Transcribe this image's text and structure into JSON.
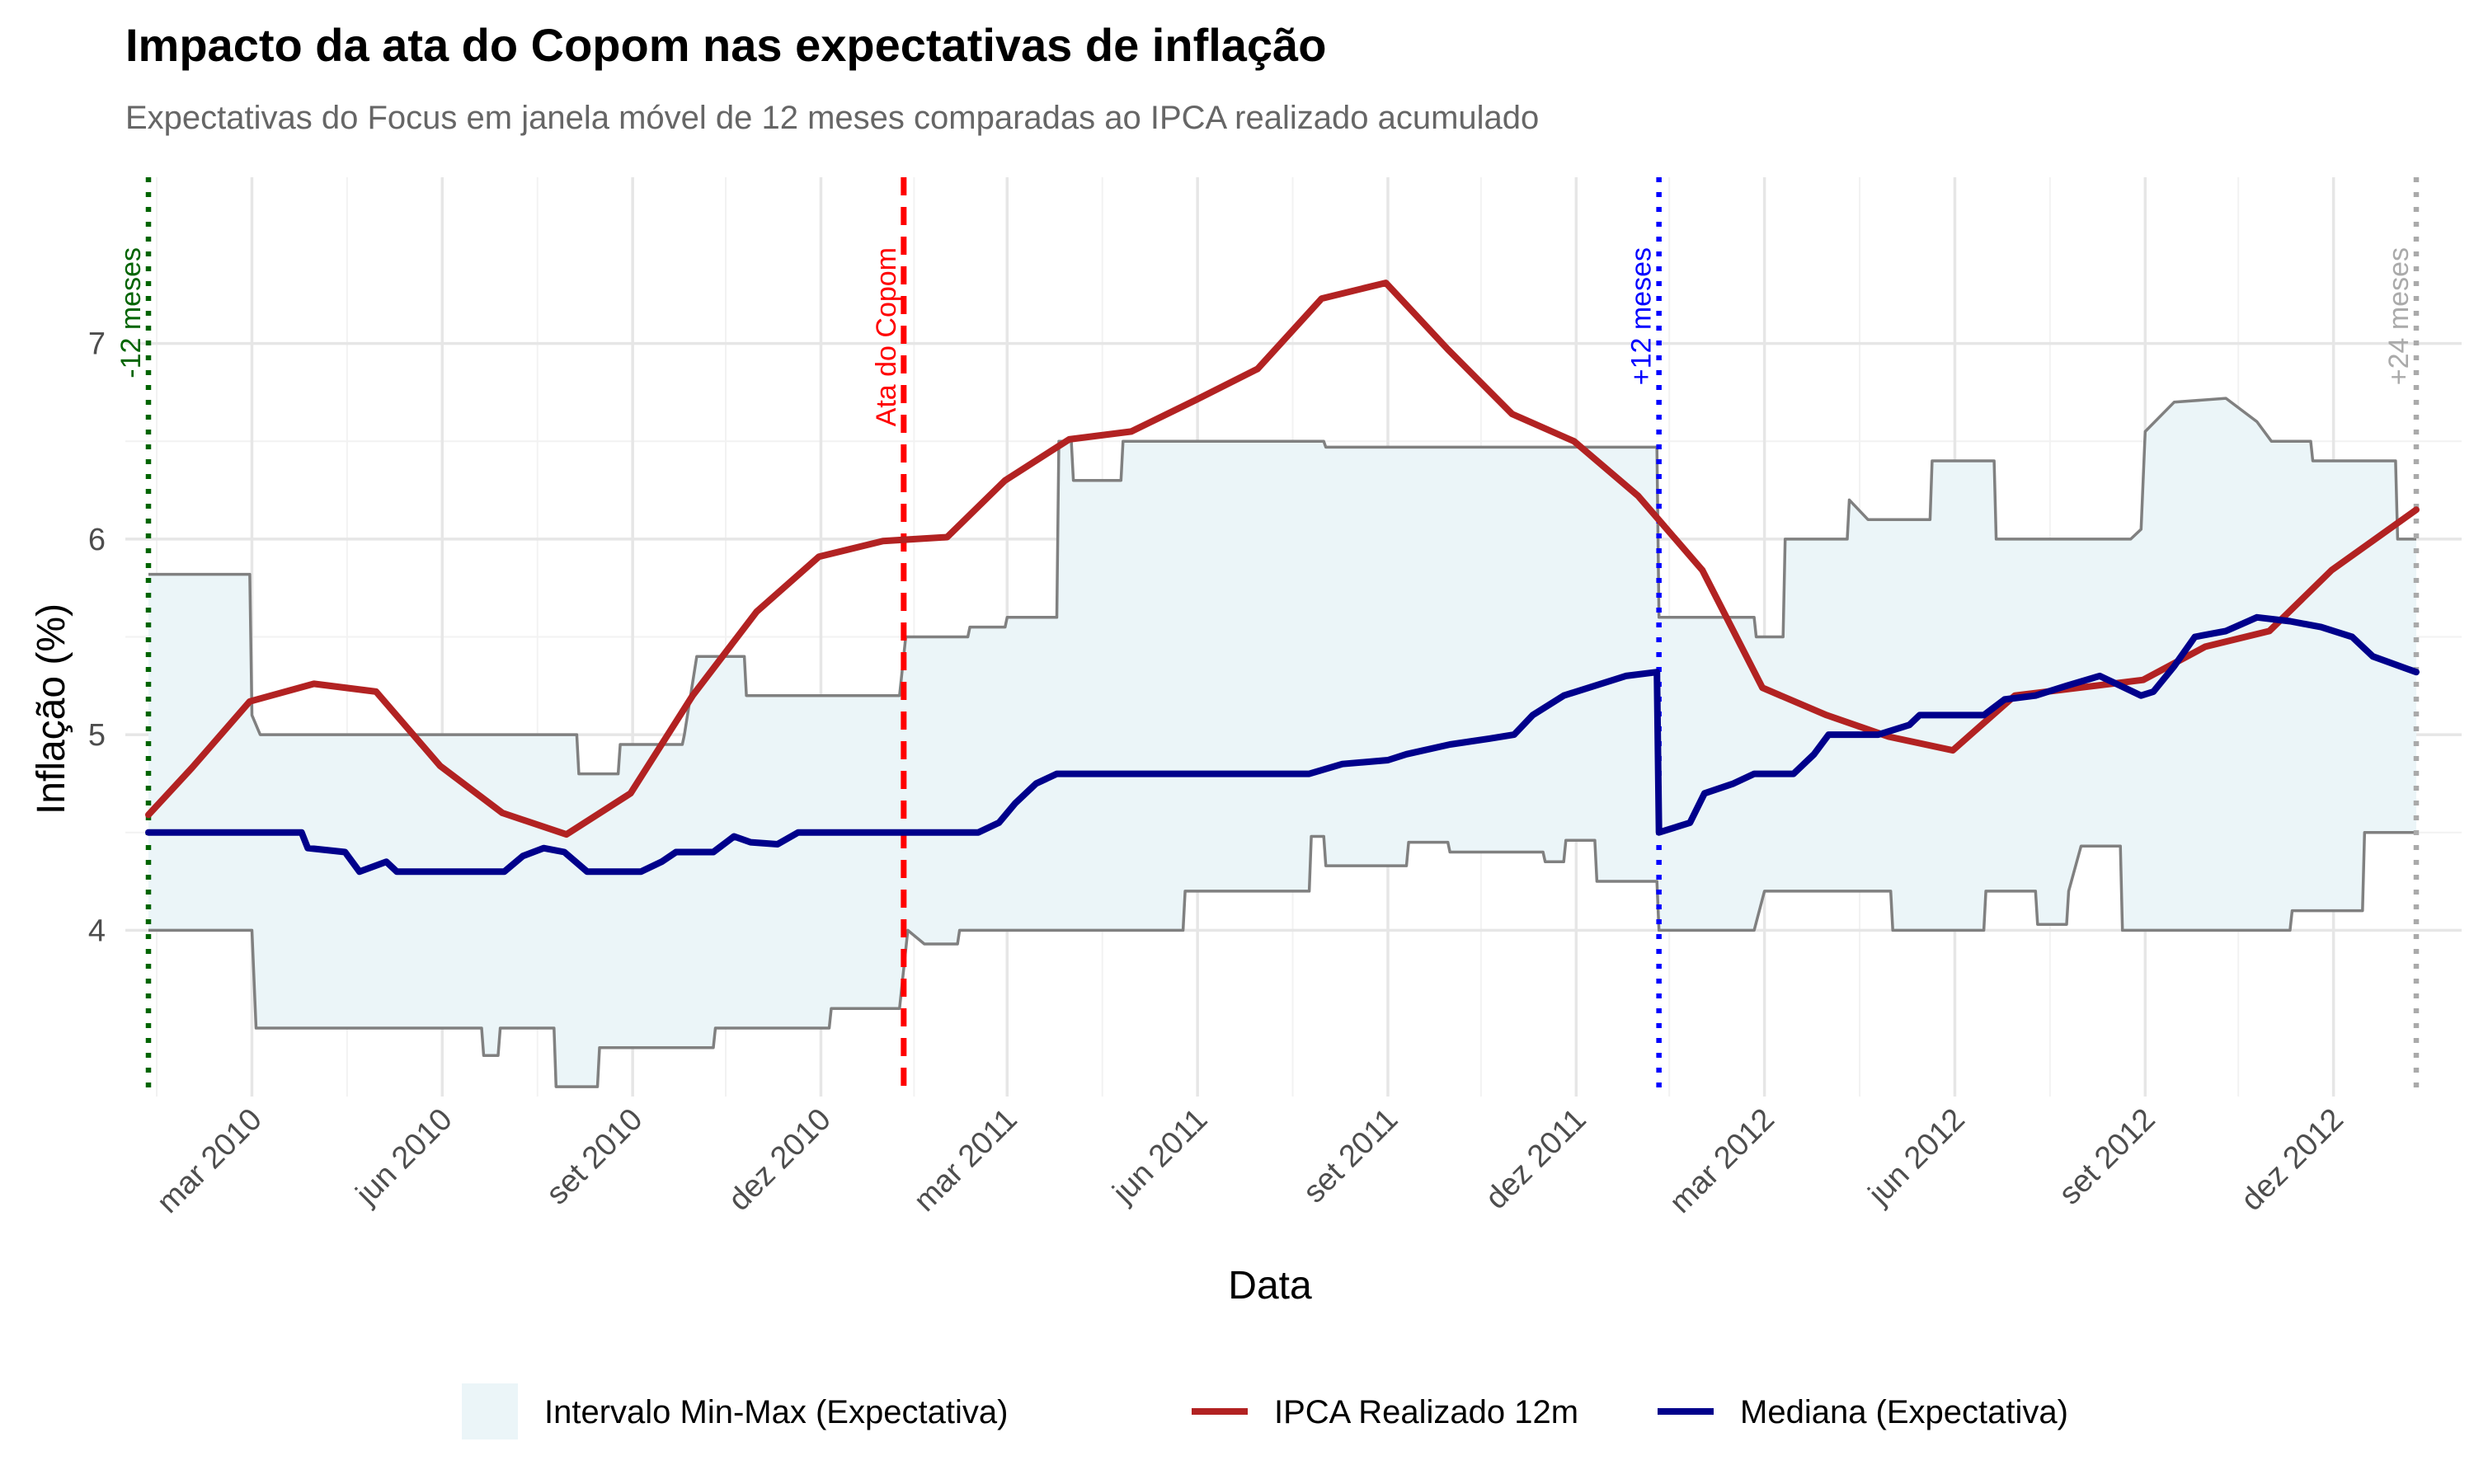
{
  "chart_data": {
    "type": "line",
    "title": "Impacto da ata do Copom nas expectativas de inflação",
    "subtitle": "Expectativas do Focus em janela móvel de 12 meses comparadas ao IPCA realizado acumulado",
    "xlabel": "Data",
    "ylabel": "Inflação (%)",
    "xlim": [
      "2010-01-10",
      "2013-01-10"
    ],
    "ylim": [
      3.15,
      7.85
    ],
    "grid": true,
    "x_ticks": [
      {
        "date": "2010-03-01",
        "label": "mar 2010"
      },
      {
        "date": "2010-06-01",
        "label": "jun 2010"
      },
      {
        "date": "2010-09-01",
        "label": "set 2010"
      },
      {
        "date": "2010-12-01",
        "label": "dez 2010"
      },
      {
        "date": "2011-03-01",
        "label": "mar 2011"
      },
      {
        "date": "2011-06-01",
        "label": "jun 2011"
      },
      {
        "date": "2011-09-01",
        "label": "set 2011"
      },
      {
        "date": "2011-12-01",
        "label": "dez 2011"
      },
      {
        "date": "2012-03-01",
        "label": "mar 2012"
      },
      {
        "date": "2012-06-01",
        "label": "jun 2012"
      },
      {
        "date": "2012-09-01",
        "label": "set 2012"
      },
      {
        "date": "2012-12-01",
        "label": "dez 2012"
      }
    ],
    "y_ticks": [
      {
        "value": 4,
        "label": "4"
      },
      {
        "value": 5,
        "label": "5"
      },
      {
        "value": 6,
        "label": "6"
      },
      {
        "value": 7,
        "label": "7"
      }
    ],
    "legend_position": "bottom",
    "legend": [
      {
        "label": "Intervalo Min-Max (Expectativa)",
        "kind": "fill",
        "color": "#ebf5f8"
      },
      {
        "label": "IPCA Realizado 12m",
        "kind": "line",
        "color": "#b22222"
      },
      {
        "label": "Mediana (Expectativa)",
        "kind": "line",
        "color": "#00008b"
      }
    ],
    "vlines": [
      {
        "date": "2010-01-10",
        "label": "-12 meses",
        "color": "#006400",
        "style": "dotted"
      },
      {
        "date": "2011-01-10",
        "label": "Ata do Copom",
        "color": "#ff0000",
        "style": "dashed"
      },
      {
        "date": "2012-01-10",
        "label": "+12 meses",
        "color": "#0000ff",
        "style": "dotted"
      },
      {
        "date": "2013-01-10",
        "label": "+24 meses",
        "color": "#aaaaaa",
        "style": "dotted"
      }
    ],
    "series": [
      {
        "name": "IPCA Realizado 12m",
        "color": "#b22222",
        "points": [
          [
            "2010-01-10",
            4.59
          ],
          [
            "2010-01-31",
            4.83
          ],
          [
            "2010-02-28",
            5.17
          ],
          [
            "2010-03-31",
            5.26
          ],
          [
            "2010-04-30",
            5.22
          ],
          [
            "2010-05-31",
            4.84
          ],
          [
            "2010-06-30",
            4.6
          ],
          [
            "2010-07-31",
            4.49
          ],
          [
            "2010-08-31",
            4.7
          ],
          [
            "2010-09-30",
            5.2
          ],
          [
            "2010-10-31",
            5.63
          ],
          [
            "2010-11-30",
            5.91
          ],
          [
            "2010-12-31",
            5.99
          ],
          [
            "2011-01-31",
            6.01
          ],
          [
            "2011-02-28",
            6.3
          ],
          [
            "2011-03-31",
            6.51
          ],
          [
            "2011-04-30",
            6.55
          ],
          [
            "2011-05-31",
            6.71
          ],
          [
            "2011-06-30",
            6.87
          ],
          [
            "2011-07-31",
            7.23
          ],
          [
            "2011-08-31",
            7.31
          ],
          [
            "2011-09-30",
            6.97
          ],
          [
            "2011-10-31",
            6.64
          ],
          [
            "2011-11-30",
            6.5
          ],
          [
            "2011-12-31",
            6.22
          ],
          [
            "2012-01-31",
            5.84
          ],
          [
            "2012-02-29",
            5.24
          ],
          [
            "2012-03-31",
            5.1
          ],
          [
            "2012-04-30",
            4.99
          ],
          [
            "2012-05-31",
            4.92
          ],
          [
            "2012-06-30",
            5.2
          ],
          [
            "2012-07-31",
            5.24
          ],
          [
            "2012-08-31",
            5.28
          ],
          [
            "2012-09-30",
            5.45
          ],
          [
            "2012-10-31",
            5.53
          ],
          [
            "2012-11-30",
            5.84
          ],
          [
            "2013-01-10",
            6.15
          ]
        ]
      },
      {
        "name": "Mediana (Expectativa)",
        "color": "#00008b",
        "points": [
          [
            "2010-01-10",
            4.5
          ],
          [
            "2010-03-25",
            4.5
          ],
          [
            "2010-03-28",
            4.42
          ],
          [
            "2010-04-15",
            4.4
          ],
          [
            "2010-04-22",
            4.3
          ],
          [
            "2010-05-05",
            4.35
          ],
          [
            "2010-05-10",
            4.3
          ],
          [
            "2010-07-01",
            4.3
          ],
          [
            "2010-07-10",
            4.38
          ],
          [
            "2010-07-20",
            4.42
          ],
          [
            "2010-07-30",
            4.4
          ],
          [
            "2010-08-10",
            4.3
          ],
          [
            "2010-09-05",
            4.3
          ],
          [
            "2010-09-15",
            4.35
          ],
          [
            "2010-09-22",
            4.4
          ],
          [
            "2010-10-10",
            4.4
          ],
          [
            "2010-10-20",
            4.48
          ],
          [
            "2010-10-28",
            4.45
          ],
          [
            "2010-11-10",
            4.44
          ],
          [
            "2010-11-20",
            4.5
          ],
          [
            "2011-02-15",
            4.5
          ],
          [
            "2011-02-25",
            4.55
          ],
          [
            "2011-03-05",
            4.65
          ],
          [
            "2011-03-15",
            4.75
          ],
          [
            "2011-03-25",
            4.8
          ],
          [
            "2011-07-25",
            4.8
          ],
          [
            "2011-08-10",
            4.85
          ],
          [
            "2011-09-01",
            4.87
          ],
          [
            "2011-09-10",
            4.9
          ],
          [
            "2011-10-01",
            4.95
          ],
          [
            "2011-10-20",
            4.98
          ],
          [
            "2011-11-01",
            5.0
          ],
          [
            "2011-11-10",
            5.1
          ],
          [
            "2011-11-25",
            5.2
          ],
          [
            "2011-12-10",
            5.25
          ],
          [
            "2011-12-25",
            5.3
          ],
          [
            "2012-01-09",
            5.32
          ],
          [
            "2012-01-10",
            4.5
          ],
          [
            "2012-01-25",
            4.55
          ],
          [
            "2012-02-01",
            4.7
          ],
          [
            "2012-02-15",
            4.75
          ],
          [
            "2012-02-25",
            4.8
          ],
          [
            "2012-03-15",
            4.8
          ],
          [
            "2012-03-25",
            4.9
          ],
          [
            "2012-04-01",
            5.0
          ],
          [
            "2012-04-25",
            5.0
          ],
          [
            "2012-05-10",
            5.05
          ],
          [
            "2012-05-15",
            5.1
          ],
          [
            "2012-06-15",
            5.1
          ],
          [
            "2012-06-25",
            5.18
          ],
          [
            "2012-07-10",
            5.2
          ],
          [
            "2012-07-25",
            5.25
          ],
          [
            "2012-08-10",
            5.3
          ],
          [
            "2012-08-20",
            5.25
          ],
          [
            "2012-08-30",
            5.2
          ],
          [
            "2012-09-05",
            5.22
          ],
          [
            "2012-09-15",
            5.35
          ],
          [
            "2012-09-25",
            5.5
          ],
          [
            "2012-10-10",
            5.53
          ],
          [
            "2012-10-25",
            5.6
          ],
          [
            "2012-11-10",
            5.58
          ],
          [
            "2012-11-25",
            5.55
          ],
          [
            "2012-12-10",
            5.5
          ],
          [
            "2012-12-20",
            5.4
          ],
          [
            "2013-01-10",
            5.32
          ]
        ]
      }
    ],
    "band": {
      "name": "Intervalo Min-Max (Expectativa)",
      "fill": "#ebf5f8",
      "stroke": "#808080",
      "upper": [
        [
          "2010-01-10",
          5.82
        ],
        [
          "2010-02-28",
          5.82
        ],
        [
          "2010-03-01",
          5.1
        ],
        [
          "2010-03-05",
          5.0
        ],
        [
          "2010-08-05",
          5.0
        ],
        [
          "2010-08-06",
          4.8
        ],
        [
          "2010-08-25",
          4.8
        ],
        [
          "2010-08-26",
          4.95
        ],
        [
          "2010-09-25",
          4.95
        ],
        [
          "2010-09-26",
          5.0
        ],
        [
          "2010-10-02",
          5.4
        ],
        [
          "2010-10-25",
          5.4
        ],
        [
          "2010-10-26",
          5.2
        ],
        [
          "2011-01-08",
          5.2
        ],
        [
          "2011-01-11",
          5.5
        ],
        [
          "2011-02-10",
          5.5
        ],
        [
          "2011-02-11",
          5.55
        ],
        [
          "2011-02-28",
          5.55
        ],
        [
          "2011-03-01",
          5.6
        ],
        [
          "2011-03-25",
          5.6
        ],
        [
          "2011-03-26",
          6.5
        ],
        [
          "2011-04-01",
          6.5
        ],
        [
          "2011-04-02",
          6.3
        ],
        [
          "2011-04-25",
          6.3
        ],
        [
          "2011-04-26",
          6.5
        ],
        [
          "2011-08-01",
          6.5
        ],
        [
          "2011-08-02",
          6.47
        ],
        [
          "2012-01-09",
          6.47
        ],
        [
          "2012-01-10",
          5.6
        ],
        [
          "2012-02-25",
          5.6
        ],
        [
          "2012-02-26",
          5.5
        ],
        [
          "2012-03-10",
          5.5
        ],
        [
          "2012-03-11",
          6.0
        ],
        [
          "2012-04-10",
          6.0
        ],
        [
          "2012-04-11",
          6.2
        ],
        [
          "2012-04-20",
          6.1
        ],
        [
          "2012-05-20",
          6.1
        ],
        [
          "2012-05-21",
          6.4
        ],
        [
          "2012-06-20",
          6.4
        ],
        [
          "2012-06-21",
          6.0
        ],
        [
          "2012-08-25",
          6.0
        ],
        [
          "2012-08-30",
          6.05
        ],
        [
          "2012-09-01",
          6.55
        ],
        [
          "2012-09-15",
          6.7
        ],
        [
          "2012-10-10",
          6.72
        ],
        [
          "2012-10-25",
          6.6
        ],
        [
          "2012-11-01",
          6.5
        ],
        [
          "2012-11-20",
          6.5
        ],
        [
          "2012-11-21",
          6.4
        ],
        [
          "2012-12-31",
          6.4
        ],
        [
          "2013-01-01",
          6.0
        ],
        [
          "2013-01-10",
          6.0
        ]
      ],
      "lower": [
        [
          "2010-01-10",
          4.0
        ],
        [
          "2010-03-01",
          4.0
        ],
        [
          "2010-03-03",
          3.5
        ],
        [
          "2010-06-20",
          3.5
        ],
        [
          "2010-06-21",
          3.36
        ],
        [
          "2010-06-28",
          3.36
        ],
        [
          "2010-06-29",
          3.5
        ],
        [
          "2010-07-25",
          3.5
        ],
        [
          "2010-07-26",
          3.2
        ],
        [
          "2010-08-15",
          3.2
        ],
        [
          "2010-08-16",
          3.4
        ],
        [
          "2010-10-10",
          3.4
        ],
        [
          "2010-10-11",
          3.5
        ],
        [
          "2010-12-05",
          3.5
        ],
        [
          "2010-12-06",
          3.6
        ],
        [
          "2011-01-08",
          3.6
        ],
        [
          "2011-01-12",
          4.0
        ],
        [
          "2011-01-20",
          3.93
        ],
        [
          "2011-02-05",
          3.93
        ],
        [
          "2011-02-06",
          4.0
        ],
        [
          "2011-05-25",
          4.0
        ],
        [
          "2011-05-26",
          4.2
        ],
        [
          "2011-07-25",
          4.2
        ],
        [
          "2011-07-26",
          4.48
        ],
        [
          "2011-08-01",
          4.48
        ],
        [
          "2011-08-02",
          4.33
        ],
        [
          "2011-09-10",
          4.33
        ],
        [
          "2011-09-11",
          4.45
        ],
        [
          "2011-09-30",
          4.45
        ],
        [
          "2011-10-01",
          4.4
        ],
        [
          "2011-11-15",
          4.4
        ],
        [
          "2011-11-16",
          4.35
        ],
        [
          "2011-11-25",
          4.35
        ],
        [
          "2011-11-26",
          4.46
        ],
        [
          "2011-12-10",
          4.46
        ],
        [
          "2011-12-11",
          4.25
        ],
        [
          "2012-01-09",
          4.25
        ],
        [
          "2012-01-10",
          4.0
        ],
        [
          "2012-02-25",
          4.0
        ],
        [
          "2012-03-01",
          4.2
        ],
        [
          "2012-05-01",
          4.2
        ],
        [
          "2012-05-02",
          4.0
        ],
        [
          "2012-06-15",
          4.0
        ],
        [
          "2012-06-16",
          4.2
        ],
        [
          "2012-07-10",
          4.2
        ],
        [
          "2012-07-11",
          4.03
        ],
        [
          "2012-07-25",
          4.03
        ],
        [
          "2012-07-26",
          4.2
        ],
        [
          "2012-08-01",
          4.43
        ],
        [
          "2012-08-20",
          4.43
        ],
        [
          "2012-08-21",
          4.0
        ],
        [
          "2012-11-10",
          4.0
        ],
        [
          "2012-11-11",
          4.1
        ],
        [
          "2012-12-15",
          4.1
        ],
        [
          "2012-12-16",
          4.5
        ],
        [
          "2013-01-10",
          4.5
        ]
      ]
    }
  }
}
